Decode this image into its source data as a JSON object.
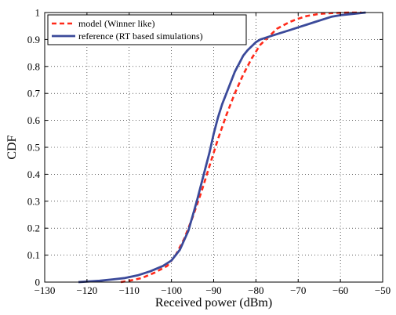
{
  "chart_data": {
    "type": "line",
    "xlabel": "Received power (dBm)",
    "ylabel": "CDF",
    "xlim": [
      -130,
      -50
    ],
    "ylim": [
      0,
      1
    ],
    "xticks": [
      -130,
      -120,
      -110,
      -100,
      -90,
      -80,
      -70,
      -60,
      -50
    ],
    "yticks": [
      0,
      0.1,
      0.2,
      0.3,
      0.4,
      0.5,
      0.6,
      0.7,
      0.8,
      0.9,
      1
    ],
    "grid": true,
    "legend_position": "top-left",
    "series": [
      {
        "name": "model (Winner like)",
        "color": "#ff2a1a",
        "style": "dashed",
        "x": [
          -112,
          -110,
          -107,
          -104,
          -101,
          -99,
          -97,
          -95,
          -93,
          -91,
          -89,
          -87,
          -85,
          -83,
          -81,
          -79,
          -77,
          -75,
          -72,
          -70,
          -68,
          -65,
          -62,
          -60,
          -58,
          -55
        ],
        "y": [
          0.0,
          0.005,
          0.015,
          0.035,
          0.06,
          0.1,
          0.16,
          0.24,
          0.33,
          0.43,
          0.53,
          0.62,
          0.7,
          0.77,
          0.83,
          0.88,
          0.91,
          0.94,
          0.965,
          0.977,
          0.987,
          0.995,
          0.998,
          0.999,
          1.0,
          1.0
        ]
      },
      {
        "name": "reference (RT based simulations)",
        "color": "#3b4a9a",
        "style": "solid",
        "x": [
          -122,
          -117,
          -114,
          -111,
          -108,
          -105,
          -102,
          -100,
          -98,
          -96,
          -94,
          -92,
          -91,
          -90,
          -89,
          -88,
          -87,
          -86,
          -85,
          -84,
          -83,
          -82,
          -81,
          -80,
          -79,
          -78,
          -76,
          -74,
          -72,
          -70,
          -68,
          -66,
          -64,
          -62,
          -60,
          -57,
          -54
        ],
        "y": [
          0.0,
          0.005,
          0.01,
          0.015,
          0.025,
          0.04,
          0.06,
          0.08,
          0.12,
          0.19,
          0.3,
          0.42,
          0.48,
          0.55,
          0.61,
          0.66,
          0.7,
          0.74,
          0.78,
          0.81,
          0.84,
          0.86,
          0.875,
          0.89,
          0.9,
          0.905,
          0.915,
          0.925,
          0.935,
          0.945,
          0.955,
          0.965,
          0.975,
          0.985,
          0.99,
          0.995,
          1.0
        ]
      }
    ]
  }
}
